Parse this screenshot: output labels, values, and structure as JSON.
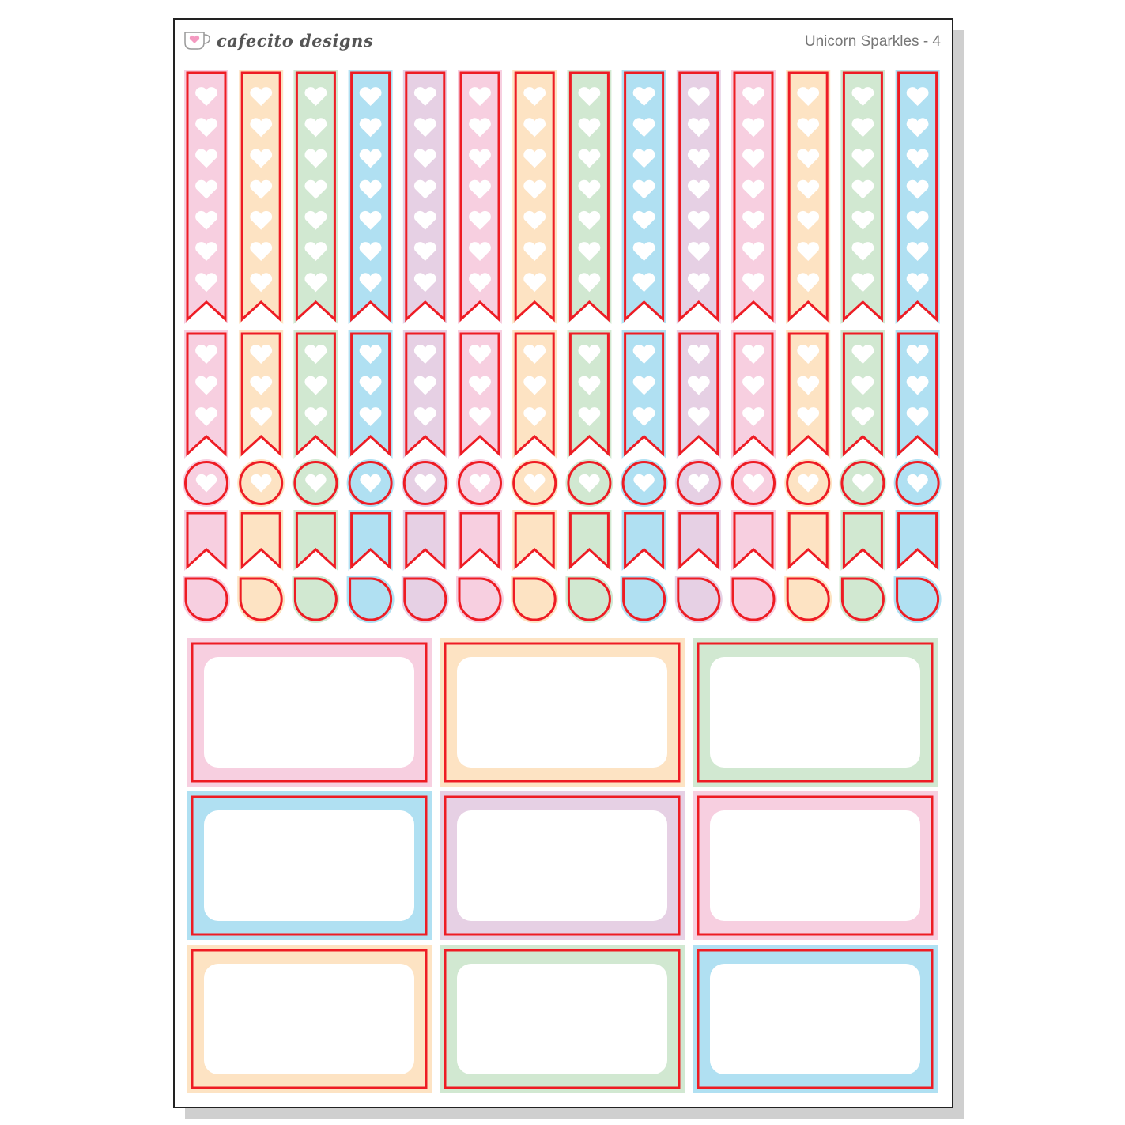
{
  "brand": {
    "name": "cafecito designs",
    "logo_icon": "coffee-cup-heart-icon"
  },
  "sheet_title": "Unicorn Sparkles - 4",
  "colors": {
    "accent_red": "#ee1c24",
    "pink": "#f7cfe0",
    "peach": "#fde3c3",
    "green": "#d1e8d1",
    "blue": "#b0e0f2",
    "lavender": "#e6d0e4"
  },
  "column_colors": [
    "pink",
    "peach",
    "green",
    "blue",
    "lavender",
    "pink",
    "peach",
    "green",
    "blue",
    "lavender",
    "pink",
    "peach",
    "green",
    "blue"
  ],
  "box_colors": [
    "pink",
    "peach",
    "green",
    "blue",
    "lavender",
    "pink",
    "peach",
    "green",
    "blue"
  ],
  "sticker_rows": [
    {
      "type": "tall-heart-flag",
      "hearts": 7
    },
    {
      "type": "medium-heart-flag",
      "hearts": 3
    },
    {
      "type": "heart-circle",
      "hearts": 1
    },
    {
      "type": "small-flag",
      "hearts": 0
    },
    {
      "type": "drop",
      "hearts": 0
    }
  ]
}
